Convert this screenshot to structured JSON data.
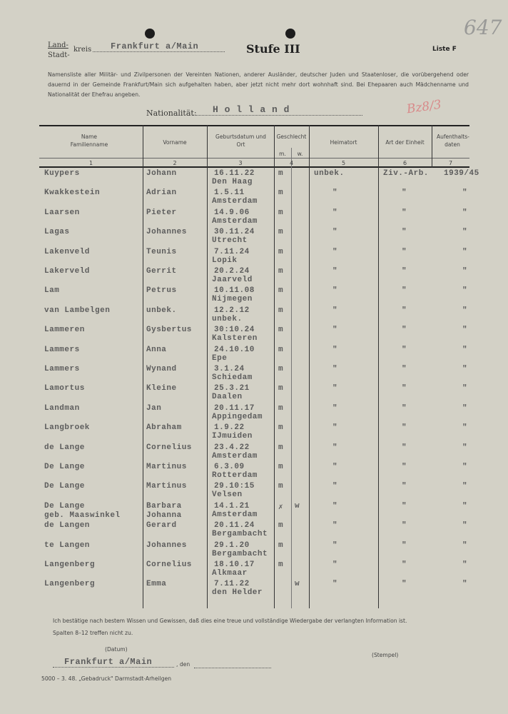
{
  "header": {
    "land_label": "Land-",
    "stadt_label": "Stadt-",
    "kreis_label": "kreis",
    "kreis_value": "Frankfurt a/Main",
    "title": "Stufe III",
    "list": "Liste F",
    "handwritten_number": "647",
    "instructions": "Namensliste aller Militär- und Zivilpersonen der Vereinten Nationen, anderer Ausländer, deutscher Juden und Staatenloser, die vorübergehend oder dauernd in der Gemeinde Frankfurt/Main sich aufgehalten haben, aber jetzt nicht mehr dort wohnhaft sind. Bei Ehepaaren auch Mädchenname und Nationalität der Ehefrau angeben.",
    "nationality_label": "Nationalität:",
    "nationality_value": "H o l l a n d",
    "red_mark": "Bz8/3"
  },
  "table": {
    "columns": [
      {
        "label": "Name Familienname",
        "number": "1"
      },
      {
        "label": "Vorname",
        "number": "2"
      },
      {
        "label": "Geburtsdatum und Ort",
        "number": "3"
      },
      {
        "label": "Geschlecht",
        "number": "4",
        "sub": [
          "m.",
          "w."
        ]
      },
      {
        "label": "Heimatort",
        "number": "5"
      },
      {
        "label": "Art der Einheit",
        "number": "6"
      },
      {
        "label": "Aufenthalts-daten",
        "number": "7"
      }
    ],
    "rows": [
      {
        "name": "Kuypers",
        "first": "Johann",
        "date": "16.11.22",
        "place": "Den Haag",
        "m": "m",
        "w": "",
        "home": "unbek.",
        "unit": "Ziv.-Arb.",
        "stay": "1939/45"
      },
      {
        "name": "Kwakkestein",
        "first": "Adrian",
        "date": "1.5.11",
        "place": "Amsterdam",
        "m": "m",
        "w": "",
        "home": "\"",
        "unit": "\"",
        "stay": "\""
      },
      {
        "name": "Laarsen",
        "first": "Pieter",
        "date": "14.9.06",
        "place": "Amsterdam",
        "m": "m",
        "w": "",
        "home": "\"",
        "unit": "\"",
        "stay": "\""
      },
      {
        "name": "Lagas",
        "first": "Johannes",
        "date": "30.11.24",
        "place": "Utrecht",
        "m": "m",
        "w": "",
        "home": "\"",
        "unit": "\"",
        "stay": "\""
      },
      {
        "name": "Lakenveld",
        "first": "Teunis",
        "date": "7.11.24",
        "place": "Lopik",
        "m": "m",
        "w": "",
        "home": "\"",
        "unit": "\"",
        "stay": "\""
      },
      {
        "name": "Lakerveld",
        "first": "Gerrit",
        "date": "20.2.24",
        "place": "Jaarveld",
        "m": "m",
        "w": "",
        "home": "\"",
        "unit": "\"",
        "stay": "\""
      },
      {
        "name": "Lam",
        "first": "Petrus",
        "date": "10.11.08",
        "place": "Nijmegen",
        "m": "m",
        "w": "",
        "home": "\"",
        "unit": "\"",
        "stay": "\""
      },
      {
        "name": "van Lambelgen",
        "first": "unbek.",
        "date": "12.2.12",
        "place": "unbek.",
        "m": "m",
        "w": "",
        "home": "\"",
        "unit": "\"",
        "stay": "\""
      },
      {
        "name": "Lammeren",
        "first": "Gysbertus",
        "date": "30:10.24",
        "place": "Kalsteren",
        "m": "m",
        "w": "",
        "home": "\"",
        "unit": "\"",
        "stay": "\""
      },
      {
        "name": "Lammers",
        "first": "Anna",
        "date": "24.10.10",
        "place": "Epe",
        "m": "m",
        "w": "",
        "home": "\"",
        "unit": "\"",
        "stay": "\""
      },
      {
        "name": "Lammers",
        "first": "Wynand",
        "date": "3.1.24",
        "place": "Schiedam",
        "m": "m",
        "w": "",
        "home": "\"",
        "unit": "\"",
        "stay": "\""
      },
      {
        "name": "Lamortus",
        "first": "Kleine",
        "date": "25.3.21",
        "place": "Daalen",
        "m": "m",
        "w": "",
        "home": "\"",
        "unit": "\"",
        "stay": "\""
      },
      {
        "name": "Landman",
        "first": "Jan",
        "date": "20.11.17",
        "place": "Appingedam",
        "m": "m",
        "w": "",
        "home": "\"",
        "unit": "\"",
        "stay": "\""
      },
      {
        "name": "Langbroek",
        "first": "Abraham",
        "date": "1.9.22",
        "place": "IJmuiden",
        "m": "m",
        "w": "",
        "home": "\"",
        "unit": "\"",
        "stay": "\""
      },
      {
        "name": "de Lange",
        "first": "Cornelius",
        "date": "23.4.22",
        "place": "Amsterdam",
        "m": "m",
        "w": "",
        "home": "\"",
        "unit": "\"",
        "stay": "\""
      },
      {
        "name": "De Lange",
        "first": "Martinus",
        "date": "6.3.09",
        "place": "Rotterdam",
        "m": "m",
        "w": "",
        "home": "\"",
        "unit": "\"",
        "stay": "\""
      },
      {
        "name": "De Lange",
        "first": "Martinus",
        "date": "29.10:15",
        "place": "Velsen",
        "m": "m",
        "w": "",
        "home": "\"",
        "unit": "\"",
        "stay": "\""
      },
      {
        "name": "De Lange",
        "name2": "geb. Maaswinkel",
        "first": "Barbara",
        "first2": "Johanna",
        "date": "14.1.21",
        "place": "Amsterdam",
        "m": "✗",
        "w": "w",
        "home": "\"",
        "unit": "\"",
        "stay": "\""
      },
      {
        "name": "de Langen",
        "first": "Gerard",
        "date": "20.11.24",
        "place": "Bergambacht",
        "m": "m",
        "w": "",
        "home": "\"",
        "unit": "\"",
        "stay": "\""
      },
      {
        "name": "te Langen",
        "first": "Johannes",
        "date": "29.1.20",
        "place": "Bergambacht",
        "m": "m",
        "w": "",
        "home": "\"",
        "unit": "\"",
        "stay": "\""
      },
      {
        "name": "Langenberg",
        "first": "Cornelius",
        "date": "18.10.17",
        "place": "Alkmaar",
        "m": "m",
        "w": "",
        "home": "\"",
        "unit": "\"",
        "stay": "\""
      },
      {
        "name": "Langenberg",
        "first": "Emma",
        "date": "7.11.22",
        "place": "den Helder",
        "m": "",
        "w": "w",
        "home": "\"",
        "unit": "\"",
        "stay": "\""
      }
    ]
  },
  "footer": {
    "confirmation": "Ich bestätige nach bestem Wissen und Gewissen, daß dies eine treue und vollständige Wiedergabe der verlangten Information ist.",
    "columns_note": "Spalten 8–12 treffen nicht zu.",
    "date_label": "(Datum)",
    "place_value": "Frankfurt a/Main",
    "den_label": ", den",
    "stamp_label": "(Stempel)",
    "printer": "5000 – 3. 48. „Gebadruck\" Darmstadt-Arheilgen"
  }
}
